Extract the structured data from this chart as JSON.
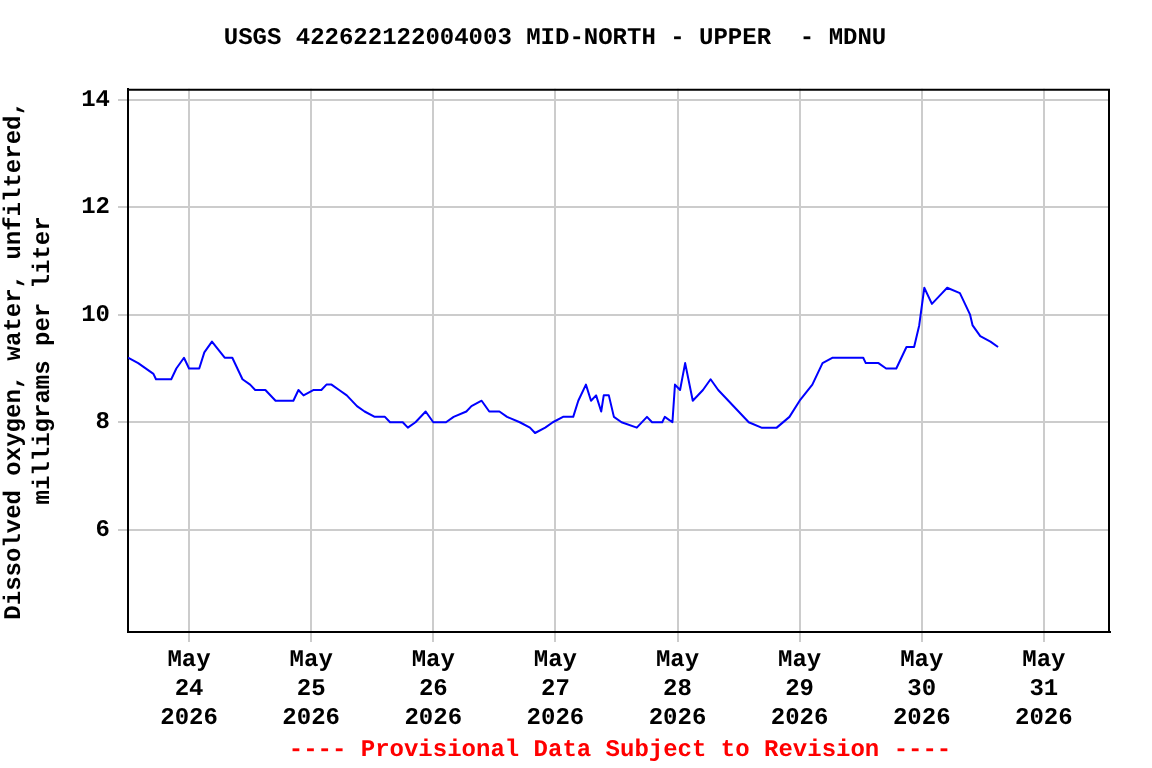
{
  "chart_data": {
    "type": "line",
    "title": "USGS 422622122004003 MID-NORTH - UPPER  - MDNU",
    "ylabel": "Dissolved oxygen, water, unfiltered, milligrams per liter",
    "annotations": [
      "---- Provisional Data Subject to Revision ----"
    ],
    "x": [
      "2026-05-23T12:00",
      "2026-05-23T14:00",
      "2026-05-23T17:00",
      "2026-05-23T17:30",
      "2026-05-23T20:30",
      "2026-05-23T21:30",
      "2026-05-23T23:00",
      "2026-05-24T00:00",
      "2026-05-24T02:00",
      "2026-05-24T03:00",
      "2026-05-24T04:30",
      "2026-05-24T07:00",
      "2026-05-24T08:30",
      "2026-05-24T10:30",
      "2026-05-24T12:00",
      "2026-05-24T13:00",
      "2026-05-24T15:00",
      "2026-05-24T17:00",
      "2026-05-24T20:30",
      "2026-05-24T21:30",
      "2026-05-24T22:30",
      "2026-05-25T00:30",
      "2026-05-25T02:00",
      "2026-05-25T03:00",
      "2026-05-25T04:00",
      "2026-05-25T05:30",
      "2026-05-25T07:00",
      "2026-05-25T09:00",
      "2026-05-25T10:30",
      "2026-05-25T12:30",
      "2026-05-25T14:30",
      "2026-05-25T15:30",
      "2026-05-25T18:00",
      "2026-05-25T19:00",
      "2026-05-25T20:30",
      "2026-05-25T22:30",
      "2026-05-26T00:00",
      "2026-05-26T02:30",
      "2026-05-26T04:00",
      "2026-05-26T06:30",
      "2026-05-26T07:30",
      "2026-05-26T09:30",
      "2026-05-26T11:00",
      "2026-05-26T13:00",
      "2026-05-26T14:30",
      "2026-05-26T17:00",
      "2026-05-26T19:00",
      "2026-05-26T20:00",
      "2026-05-26T22:00",
      "2026-05-26T23:30",
      "2026-05-27T01:30",
      "2026-05-27T03:30",
      "2026-05-27T04:30",
      "2026-05-27T06:00",
      "2026-05-27T07:00",
      "2026-05-27T08:00",
      "2026-05-27T09:00",
      "2026-05-27T09:30",
      "2026-05-27T10:30",
      "2026-05-27T11:30",
      "2026-05-27T13:00",
      "2026-05-27T16:00",
      "2026-05-27T18:00",
      "2026-05-27T19:00",
      "2026-05-27T21:00",
      "2026-05-27T21:30",
      "2026-05-27T23:00",
      "2026-05-27T23:30",
      "2026-05-28T00:30",
      "2026-05-28T01:30",
      "2026-05-28T03:00",
      "2026-05-28T05:00",
      "2026-05-28T06:30",
      "2026-05-28T08:00",
      "2026-05-28T10:00",
      "2026-05-28T12:00",
      "2026-05-28T14:00",
      "2026-05-28T16:30",
      "2026-05-28T19:30",
      "2026-05-28T22:00",
      "2026-05-29T00:00",
      "2026-05-29T02:30",
      "2026-05-29T04:30",
      "2026-05-29T06:30",
      "2026-05-29T12:30",
      "2026-05-29T13:00",
      "2026-05-29T15:30",
      "2026-05-29T17:00",
      "2026-05-29T19:00",
      "2026-05-29T21:00",
      "2026-05-29T22:30",
      "2026-05-29T23:30",
      "2026-05-30T00:30",
      "2026-05-30T02:00",
      "2026-05-30T04:00",
      "2026-05-30T05:00",
      "2026-05-30T07:30",
      "2026-05-30T09:30",
      "2026-05-30T10:00",
      "2026-05-30T11:30",
      "2026-05-30T13:30",
      "2026-05-30T15:00"
    ],
    "series": [
      {
        "color": "#0000ff",
        "values": [
          9.2,
          9.1,
          8.9,
          8.8,
          8.8,
          9.0,
          9.2,
          9.0,
          9.0,
          9.3,
          9.5,
          9.2,
          9.2,
          8.8,
          8.7,
          8.6,
          8.6,
          8.4,
          8.4,
          8.6,
          8.5,
          8.6,
          8.6,
          8.7,
          8.7,
          8.6,
          8.5,
          8.3,
          8.2,
          8.1,
          8.1,
          8.0,
          8.0,
          7.9,
          8.0,
          8.2,
          8.0,
          8.0,
          8.1,
          8.2,
          8.3,
          8.4,
          8.2,
          8.2,
          8.1,
          8.0,
          7.9,
          7.8,
          7.9,
          8.0,
          8.1,
          8.1,
          8.4,
          8.7,
          8.4,
          8.5,
          8.2,
          8.5,
          8.5,
          8.1,
          8.0,
          7.9,
          8.1,
          8.0,
          8.0,
          8.1,
          8.0,
          8.7,
          8.6,
          9.1,
          8.4,
          8.6,
          8.8,
          8.6,
          8.4,
          8.2,
          8.0,
          7.9,
          7.9,
          8.1,
          8.4,
          8.7,
          9.1,
          9.2,
          9.2,
          9.1,
          9.1,
          9.0,
          9.0,
          9.4,
          9.4,
          9.8,
          10.5,
          10.2,
          10.4,
          10.5,
          10.4,
          10.0,
          9.8,
          9.6,
          9.5,
          9.4
        ]
      }
    ],
    "xlim": [
      "2026-05-23T12:00",
      "2026-05-31T13:00"
    ],
    "xticks": [
      {
        "value": "2026-05-24",
        "label": "May 24 2026"
      },
      {
        "value": "2026-05-25",
        "label": "May 25 2026"
      },
      {
        "value": "2026-05-26",
        "label": "May 26 2026"
      },
      {
        "value": "2026-05-27",
        "label": "May 27 2026"
      },
      {
        "value": "2026-05-28",
        "label": "May 28 2026"
      },
      {
        "value": "2026-05-29",
        "label": "May 29 2026"
      },
      {
        "value": "2026-05-30",
        "label": "May 30 2026"
      },
      {
        "value": "2026-05-31",
        "label": "May 31 2026"
      }
    ],
    "ylim": [
      4.1,
      14.2
    ],
    "yticks": [
      6,
      8,
      10,
      12,
      14
    ],
    "grid": true,
    "legend": false,
    "marker": "none",
    "line_style": "solid"
  }
}
